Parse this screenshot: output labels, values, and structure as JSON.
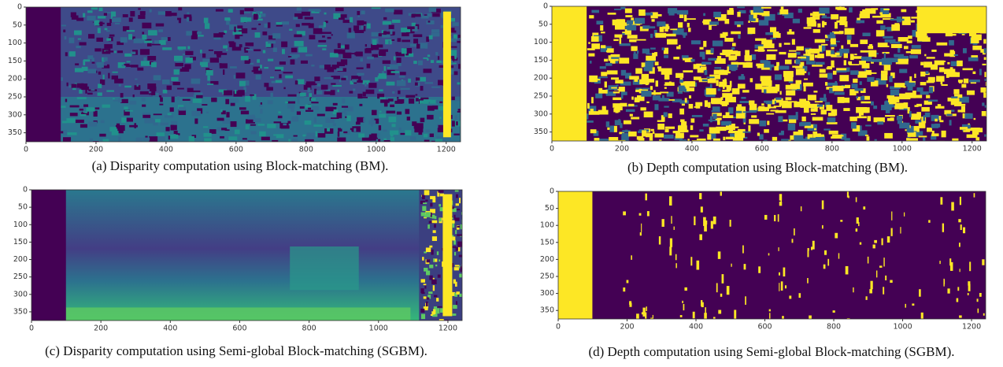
{
  "panels": [
    {
      "caption": "(a) Disparity computation using Block-matching (BM).",
      "xlim": [
        0,
        1241
      ],
      "ylim": [
        375,
        0
      ],
      "xticks": [
        0,
        200,
        400,
        600,
        800,
        1000,
        1200
      ],
      "yticks": [
        0,
        50,
        100,
        150,
        200,
        250,
        300,
        350
      ]
    },
    {
      "caption": "(b) Depth computation using Block-matching (BM).",
      "xlim": [
        0,
        1241
      ],
      "ylim": [
        375,
        0
      ],
      "xticks": [
        0,
        200,
        400,
        600,
        800,
        1000,
        1200
      ],
      "yticks": [
        0,
        50,
        100,
        150,
        200,
        250,
        300,
        350
      ]
    },
    {
      "caption": "(c) Disparity computation using Semi-global Block-matching (SGBM).",
      "xlim": [
        0,
        1241
      ],
      "ylim": [
        375,
        0
      ],
      "xticks": [
        0,
        200,
        400,
        600,
        800,
        1000,
        1200
      ],
      "yticks": [
        0,
        50,
        100,
        150,
        200,
        250,
        300,
        350
      ]
    },
    {
      "caption": "(d) Depth computation using Semi-global Block-matching (SGBM).",
      "xlim": [
        0,
        1241
      ],
      "ylim": [
        375,
        0
      ],
      "xticks": [
        0,
        200,
        400,
        600,
        800,
        1000,
        1200
      ],
      "yticks": [
        0,
        50,
        100,
        150,
        200,
        250,
        300,
        350
      ]
    }
  ]
}
